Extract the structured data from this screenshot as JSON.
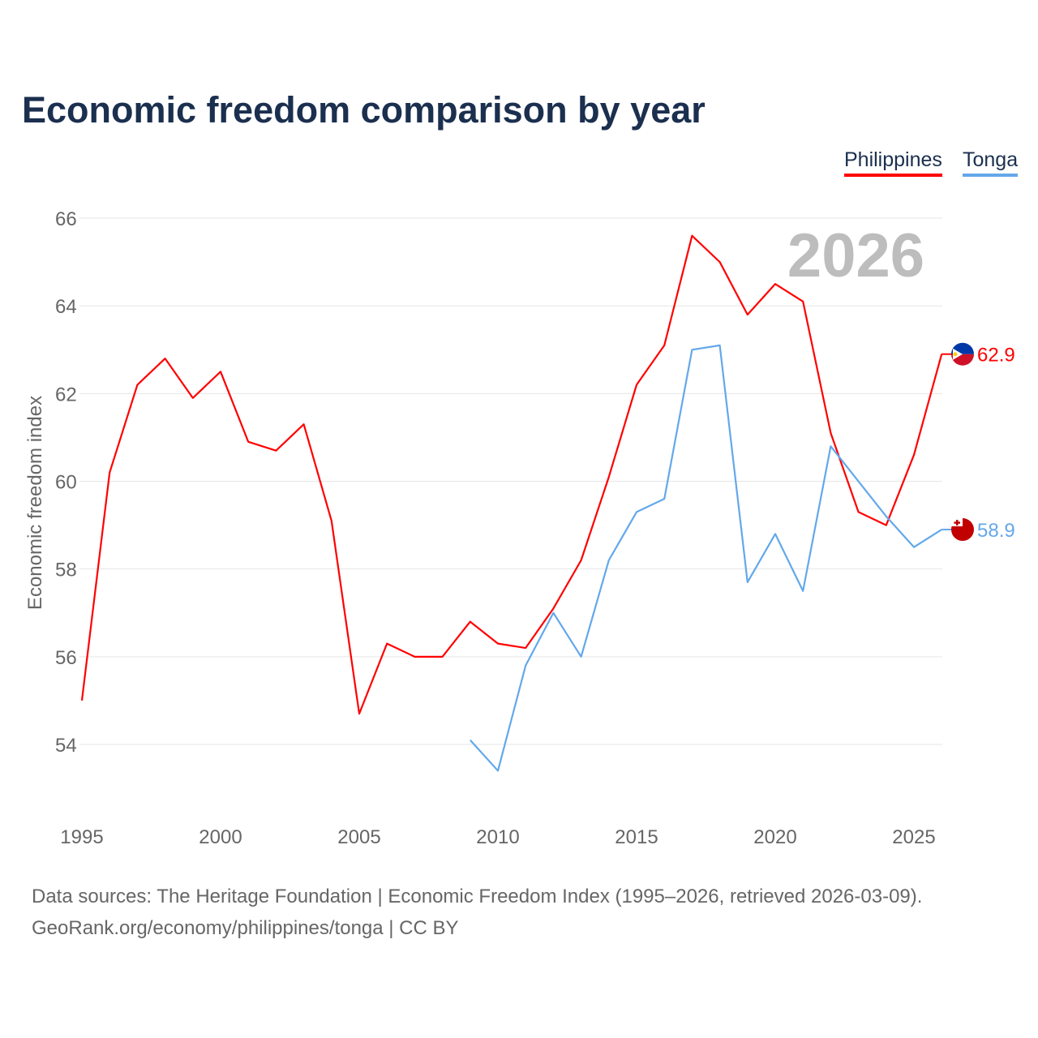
{
  "chart_data": {
    "type": "line",
    "title": "Economic freedom comparison by year",
    "xlabel": "",
    "ylabel": "Economic freedom index",
    "ylim": [
      53,
      66.3
    ],
    "xlim": [
      1995,
      2026
    ],
    "yticks": [
      54,
      56,
      58,
      60,
      62,
      64,
      66
    ],
    "xticks": [
      1995,
      2000,
      2005,
      2010,
      2015,
      2020,
      2025
    ],
    "year_watermark": "2026",
    "grid": true,
    "legend_placement": "top-right",
    "series": [
      {
        "name": "Philippines",
        "color": "#ff0000",
        "end_label": "62.9",
        "x": [
          1995,
          1996,
          1997,
          1998,
          1999,
          2000,
          2001,
          2002,
          2003,
          2004,
          2005,
          2006,
          2007,
          2008,
          2009,
          2010,
          2011,
          2012,
          2013,
          2014,
          2015,
          2016,
          2017,
          2018,
          2019,
          2020,
          2021,
          2022,
          2023,
          2024,
          2025,
          2026
        ],
        "values": [
          55.0,
          60.2,
          62.2,
          62.8,
          61.9,
          62.5,
          60.9,
          60.7,
          61.3,
          59.1,
          54.7,
          56.3,
          56.0,
          56.0,
          56.8,
          56.3,
          56.2,
          57.1,
          58.2,
          60.1,
          62.2,
          63.1,
          65.6,
          65.0,
          63.8,
          64.5,
          64.1,
          61.1,
          59.3,
          59.0,
          60.6,
          62.9
        ]
      },
      {
        "name": "Tonga",
        "color": "#63a8ea",
        "end_label": "58.9",
        "x": [
          2009,
          2010,
          2011,
          2012,
          2013,
          2014,
          2015,
          2016,
          2017,
          2018,
          2019,
          2020,
          2021,
          2022,
          2023,
          2024,
          2025,
          2026
        ],
        "values": [
          54.1,
          53.4,
          55.8,
          57.0,
          56.0,
          58.2,
          59.3,
          59.6,
          63.0,
          63.1,
          57.7,
          58.8,
          57.5,
          60.8,
          60.0,
          59.2,
          58.5,
          58.9
        ]
      }
    ]
  },
  "footer": {
    "line1": "Data sources: The Heritage Foundation | Economic Freedom Index (1995–2026, retrieved 2026-03-09).",
    "line2": "GeoRank.org/economy/philippines/tonga | CC BY"
  }
}
